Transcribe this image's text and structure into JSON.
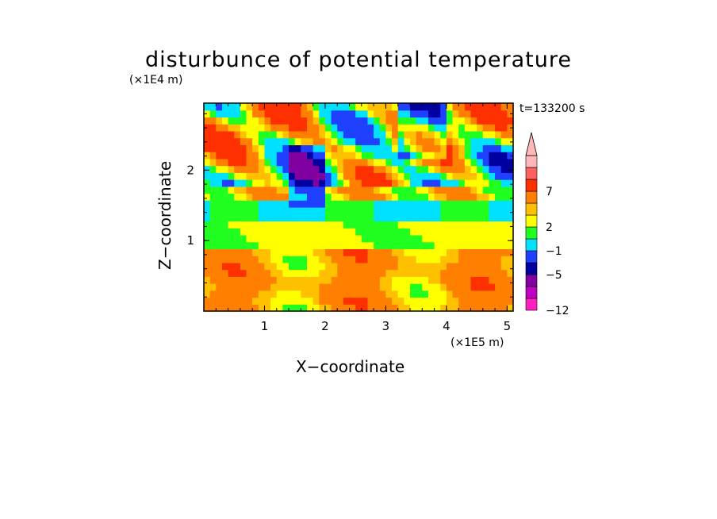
{
  "chart_data": {
    "type": "heatmap",
    "title": "disturbunce of potential temperature",
    "time_label": "t=133200 s",
    "xlabel": "X−coordinate",
    "ylabel": "Z−coordinate",
    "x_scale_label": "(×1E5 m)",
    "y_scale_label": "(×1E4 m)",
    "xlim": [
      0,
      5.1
    ],
    "ylim": [
      0,
      2.95
    ],
    "x_ticks": [
      1,
      2,
      3,
      4,
      5
    ],
    "x_tick_labels": [
      "1",
      "2",
      "3",
      "4",
      "5"
    ],
    "y_ticks": [
      1,
      2
    ],
    "y_tick_labels": [
      "1",
      "2"
    ],
    "colorbar": {
      "tick_labels": [
        "7",
        "2",
        "−1",
        "−5",
        "−12"
      ],
      "colors_bottom_to_top": [
        "#ff20c0",
        "#c000c0",
        "#8000a0",
        "#0000a0",
        "#2040ff",
        "#00e0ff",
        "#20ff20",
        "#ffff00",
        "#ffc000",
        "#ff8000",
        "#ff3000",
        "#ff6060",
        "#ffb8b8"
      ],
      "extend": "max"
    },
    "field": {
      "nx": 51,
      "nz": 30,
      "levels": [
        -12,
        -9,
        -7,
        -5,
        -3,
        -1,
        0,
        1,
        2,
        4,
        7,
        9
      ],
      "description_features": "layered bands"
    }
  }
}
